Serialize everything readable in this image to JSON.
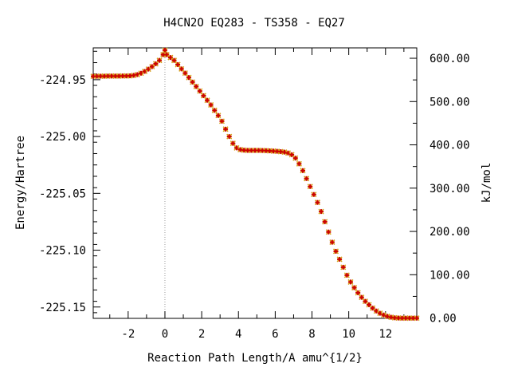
{
  "chart_data": {
    "type": "scatter",
    "title": "H4CN2O   EQ283 - TS358 - EQ27",
    "xlabel": "Reaction Path Length/A amu^{1/2}",
    "ylabel": "Energy/Hartree",
    "y2label": "kJ/mol",
    "xlim": [
      -3.9,
      13.7
    ],
    "ylim": [
      -225.16,
      -224.922
    ],
    "y2lim": [
      -0.8,
      624.0
    ],
    "x_ticks": [
      -2,
      0,
      2,
      4,
      6,
      8,
      10,
      12
    ],
    "x_tick_labels": [
      "-2",
      "0",
      "2",
      "4",
      "6",
      "8",
      "10",
      "12"
    ],
    "y_ticks": [
      -224.95,
      -225.0,
      -225.05,
      -225.1,
      -225.15
    ],
    "y_tick_labels": [
      "-224.95",
      "-225.00",
      "-225.05",
      "-225.10",
      "-225.15"
    ],
    "y2_ticks": [
      0,
      100,
      200,
      300,
      400,
      500,
      600
    ],
    "y2_tick_labels": [
      "0.00",
      "100.00",
      "200.00",
      "300.00",
      "400.00",
      "500.00",
      "600.00"
    ],
    "ts_marker_x": 0.0,
    "grid": false,
    "colors": {
      "marker_fill": "#cc0000",
      "marker_line": "#d4a017",
      "ts_line": "#999999"
    },
    "series": [
      {
        "x": [
          -3.9,
          -3.7,
          -3.5,
          -3.3,
          -3.1,
          -2.9,
          -2.7,
          -2.5,
          -2.3,
          -2.1,
          -1.9,
          -1.7,
          -1.5,
          -1.3,
          -1.1,
          -0.9,
          -0.7,
          -0.5,
          -0.3,
          -0.1,
          0.0,
          0.1,
          0.3,
          0.5,
          0.7,
          0.9,
          1.1,
          1.3,
          1.5,
          1.7,
          1.9,
          2.1,
          2.3,
          2.5,
          2.7,
          2.9,
          3.1,
          3.3,
          3.5,
          3.7,
          3.9,
          4.1,
          4.3,
          4.5,
          4.7,
          4.9,
          5.1,
          5.3,
          5.5,
          5.7,
          5.9,
          6.1,
          6.3,
          6.5,
          6.7,
          6.9,
          7.1,
          7.3,
          7.5,
          7.7,
          7.9,
          8.1,
          8.3,
          8.5,
          8.7,
          8.9,
          9.1,
          9.3,
          9.5,
          9.7,
          9.9,
          10.1,
          10.3,
          10.5,
          10.7,
          10.9,
          11.1,
          11.3,
          11.5,
          11.7,
          11.9,
          12.1,
          12.3,
          12.5,
          12.7,
          12.9,
          13.1,
          13.3,
          13.5,
          13.7
        ],
        "y": [
          -224.947,
          -224.947,
          -224.9469,
          -224.9469,
          -224.9468,
          -224.9468,
          -224.9468,
          -224.9468,
          -224.9467,
          -224.9467,
          -224.9466,
          -224.9462,
          -224.9455,
          -224.9443,
          -224.9427,
          -224.9407,
          -224.9385,
          -224.936,
          -224.933,
          -224.928,
          -224.924,
          -224.928,
          -224.9305,
          -224.933,
          -224.9367,
          -224.9405,
          -224.9442,
          -224.9481,
          -224.9521,
          -224.956,
          -224.96,
          -224.9641,
          -224.9681,
          -224.9722,
          -224.977,
          -224.9815,
          -224.9865,
          -224.9935,
          -225.0,
          -225.006,
          -225.01,
          -225.0115,
          -225.012,
          -225.0122,
          -225.0122,
          -225.0122,
          -225.0122,
          -225.0123,
          -225.0124,
          -225.0126,
          -225.0128,
          -225.013,
          -225.0133,
          -225.0137,
          -225.0145,
          -225.016,
          -225.019,
          -225.024,
          -225.03,
          -225.037,
          -225.044,
          -225.051,
          -225.058,
          -225.066,
          -225.075,
          -225.084,
          -225.093,
          -225.101,
          -225.108,
          -225.115,
          -225.122,
          -225.128,
          -225.133,
          -225.1375,
          -225.1415,
          -225.145,
          -225.148,
          -225.151,
          -225.1535,
          -225.1555,
          -225.157,
          -225.1582,
          -225.159,
          -225.1595,
          -225.1597,
          -225.1598,
          -225.1598,
          -225.1598,
          -225.1598,
          -225.1598
        ]
      }
    ]
  }
}
